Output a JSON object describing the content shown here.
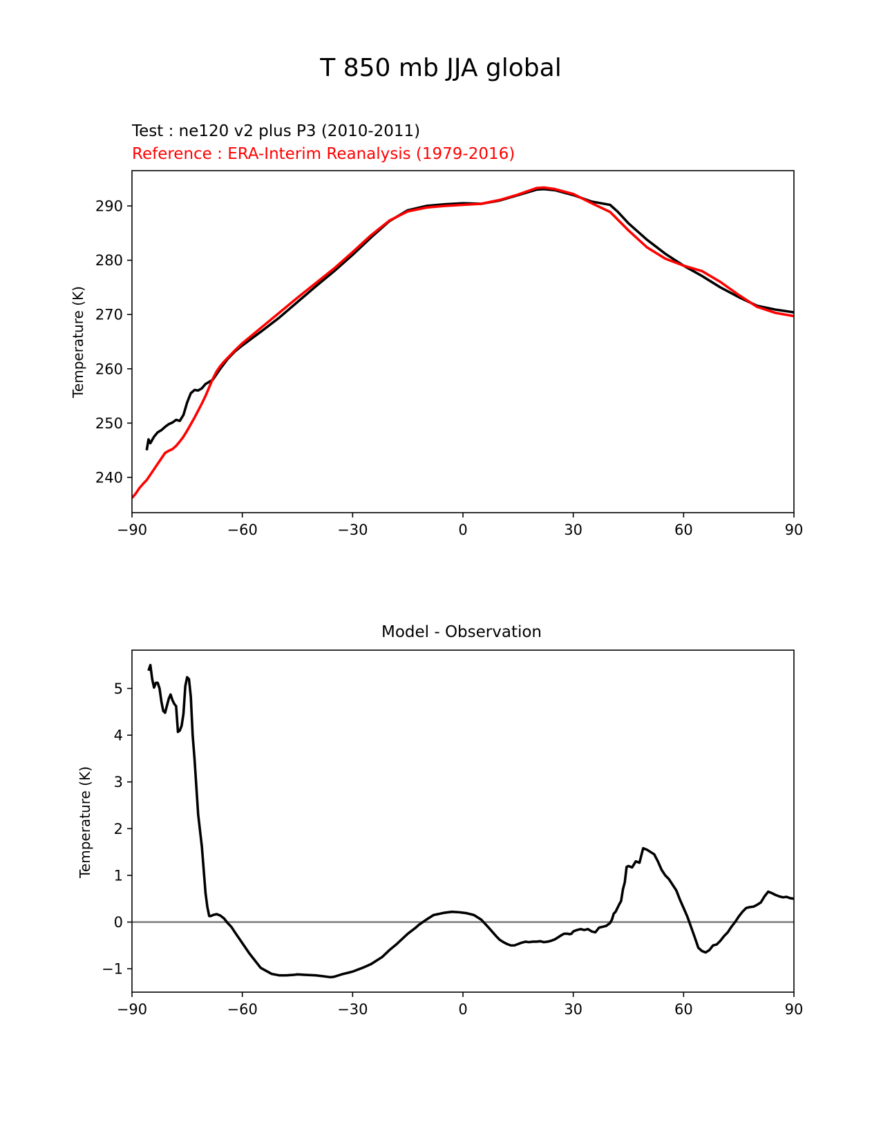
{
  "figure": {
    "title": "T 850 mb JJA global"
  },
  "colors": {
    "test": "#000000",
    "reference": "#ff0000",
    "zero_line": "#808080"
  },
  "chart_data": [
    {
      "type": "line",
      "test_label": "Test : ne120 v2 plus P3 (2010-2011)",
      "reference_label": "Reference : ERA-Interim Reanalysis (1979-2016)",
      "xlabel": "",
      "ylabel": "Temperature (K)",
      "xlim": [
        -90,
        90
      ],
      "ylim": [
        233.5,
        296.5
      ],
      "xticks": [
        -90,
        -60,
        -30,
        0,
        30,
        60,
        90
      ],
      "xtick_labels": [
        "−90",
        "−60",
        "−30",
        "0",
        "30",
        "60",
        "90"
      ],
      "yticks": [
        240,
        250,
        260,
        270,
        280,
        290
      ],
      "ytick_labels": [
        "240",
        "250",
        "260",
        "270",
        "280",
        "290"
      ],
      "series": [
        {
          "name": "Test : ne120 v2 plus P3 (2010-2011)",
          "color": "#000000",
          "x": [
            -86,
            -85.5,
            -85,
            -84,
            -83,
            -82,
            -81,
            -80,
            -79,
            -78,
            -77,
            -76,
            -75,
            -74,
            -73,
            -72,
            -71,
            -70,
            -69,
            -68,
            -66,
            -64,
            -62,
            -60,
            -55,
            -50,
            -45,
            -40,
            -35,
            -30,
            -25,
            -20,
            -15,
            -10,
            -5,
            0,
            5,
            10,
            15,
            20,
            22,
            25,
            30,
            35,
            40,
            42,
            45,
            50,
            55,
            60,
            65,
            70,
            75,
            80,
            85,
            90
          ],
          "y": [
            245,
            247,
            246.3,
            247.5,
            248.3,
            248.7,
            249.3,
            249.8,
            250.1,
            250.6,
            250.4,
            251.5,
            253.8,
            255.5,
            256.1,
            256.0,
            256.4,
            257.2,
            257.6,
            258.0,
            260.0,
            261.8,
            263.2,
            264.3,
            266.8,
            269.4,
            272.3,
            275.2,
            278.0,
            281.0,
            284.2,
            287.2,
            289.2,
            290.0,
            290.3,
            290.5,
            290.4,
            291.0,
            292.0,
            293.0,
            293.1,
            292.9,
            292.0,
            290.8,
            290.2,
            289.0,
            286.8,
            283.8,
            281.2,
            279.0,
            277.1,
            275.0,
            273.2,
            271.6,
            270.9,
            270.4
          ]
        },
        {
          "name": "Reference : ERA-Interim Reanalysis (1979-2016)",
          "color": "#ff0000",
          "x": [
            -90,
            -89,
            -88,
            -87,
            -86,
            -85,
            -84,
            -83,
            -82,
            -81,
            -80,
            -79,
            -78,
            -77,
            -76,
            -75,
            -74,
            -73,
            -72,
            -71,
            -70,
            -69,
            -68,
            -67,
            -66,
            -65,
            -64,
            -62,
            -60,
            -55,
            -50,
            -45,
            -40,
            -35,
            -30,
            -25,
            -20,
            -15,
            -10,
            -5,
            0,
            5,
            10,
            15,
            20,
            22,
            25,
            30,
            35,
            40,
            45,
            50,
            55,
            60,
            65,
            70,
            75,
            80,
            85,
            90
          ],
          "y": [
            236.2,
            237.0,
            238.0,
            238.8,
            239.5,
            240.5,
            241.5,
            242.5,
            243.5,
            244.5,
            244.9,
            245.2,
            245.8,
            246.6,
            247.5,
            248.6,
            249.8,
            251.0,
            252.3,
            253.6,
            255.0,
            256.6,
            258.2,
            259.5,
            260.5,
            261.3,
            262.0,
            263.4,
            264.7,
            267.5,
            270.3,
            273.1,
            275.8,
            278.5,
            281.5,
            284.6,
            287.3,
            289.0,
            289.7,
            290.0,
            290.2,
            290.4,
            291.1,
            292.1,
            293.3,
            293.4,
            293.1,
            292.2,
            290.5,
            288.9,
            285.5,
            282.4,
            280.3,
            279.0,
            278.0,
            276.0,
            273.6,
            271.4,
            270.3,
            269.7
          ]
        }
      ]
    },
    {
      "type": "line",
      "title": "Model - Observation",
      "xlabel": "",
      "ylabel": "Temperature (K)",
      "xlim": [
        -90,
        90
      ],
      "ylim": [
        -1.5,
        5.82
      ],
      "xticks": [
        -90,
        -60,
        -30,
        0,
        30,
        60,
        90
      ],
      "xtick_labels": [
        "−90",
        "−60",
        "−30",
        "0",
        "30",
        "60",
        "90"
      ],
      "yticks": [
        -1,
        0,
        1,
        2,
        3,
        4,
        5
      ],
      "ytick_labels": [
        "−1",
        "0",
        "1",
        "2",
        "3",
        "4",
        "5"
      ],
      "zero_line": 0,
      "series": [
        {
          "name": "Model - Observation",
          "color": "#000000",
          "x": [
            -85.5,
            -85,
            -84.5,
            -84,
            -83.5,
            -83,
            -82.5,
            -82,
            -81.5,
            -81,
            -80,
            -79.5,
            -79,
            -78.5,
            -78,
            -77.5,
            -77,
            -76.5,
            -76,
            -75.5,
            -75,
            -74.5,
            -74,
            -73.5,
            -73,
            -72,
            -71,
            -70,
            -69.5,
            -69,
            -68.5,
            -68,
            -67,
            -66,
            -65,
            -64,
            -63,
            -62,
            -60,
            -58,
            -55,
            -52,
            -50,
            -48,
            -46,
            -45,
            -43,
            -40,
            -38,
            -36,
            -35,
            -33,
            -31,
            -30,
            -28,
            -27,
            -25,
            -22,
            -20,
            -18,
            -15,
            -13,
            -12,
            -10,
            -8,
            -5,
            -3,
            -1,
            1,
            3,
            5,
            7,
            9,
            10,
            11,
            12,
            13,
            14,
            15,
            16,
            17,
            18,
            19,
            20,
            21,
            22,
            23,
            24,
            25,
            26,
            27,
            27.5,
            28,
            28.5,
            29,
            29.5,
            30,
            31,
            32,
            33,
            34,
            35,
            36,
            37,
            38,
            39,
            40,
            40.5,
            41,
            41.5,
            42,
            42.5,
            43,
            43.5,
            44,
            44.5,
            45,
            46,
            47,
            48,
            49,
            50,
            51,
            52,
            53,
            54,
            55,
            56,
            57,
            58,
            59,
            60,
            61,
            62,
            63,
            64,
            65,
            66,
            67,
            68,
            69,
            70,
            71,
            72,
            73,
            74,
            75,
            76,
            77,
            78,
            79,
            80,
            81,
            82,
            83,
            84,
            85,
            86,
            87,
            88,
            89,
            90
          ],
          "y": [
            5.38,
            5.5,
            5.2,
            5.02,
            5.12,
            5.12,
            5.0,
            4.72,
            4.52,
            4.48,
            4.78,
            4.87,
            4.75,
            4.67,
            4.62,
            4.07,
            4.1,
            4.2,
            4.46,
            5.05,
            5.24,
            5.2,
            4.82,
            4.0,
            3.5,
            2.3,
            1.62,
            0.62,
            0.32,
            0.13,
            0.13,
            0.15,
            0.17,
            0.14,
            0.08,
            -0.02,
            -0.1,
            -0.22,
            -0.45,
            -0.68,
            -0.98,
            -1.11,
            -1.14,
            -1.14,
            -1.13,
            -1.12,
            -1.13,
            -1.14,
            -1.16,
            -1.18,
            -1.17,
            -1.12,
            -1.08,
            -1.06,
            -1.0,
            -0.97,
            -0.9,
            -0.75,
            -0.6,
            -0.47,
            -0.25,
            -0.13,
            -0.06,
            0.05,
            0.15,
            0.2,
            0.22,
            0.21,
            0.19,
            0.15,
            0.05,
            -0.12,
            -0.3,
            -0.38,
            -0.43,
            -0.47,
            -0.5,
            -0.5,
            -0.47,
            -0.44,
            -0.42,
            -0.43,
            -0.42,
            -0.42,
            -0.41,
            -0.43,
            -0.42,
            -0.4,
            -0.37,
            -0.32,
            -0.27,
            -0.25,
            -0.25,
            -0.25,
            -0.26,
            -0.25,
            -0.2,
            -0.17,
            -0.15,
            -0.17,
            -0.15,
            -0.2,
            -0.22,
            -0.12,
            -0.1,
            -0.08,
            -0.02,
            0.05,
            0.18,
            0.22,
            0.3,
            0.38,
            0.45,
            0.7,
            0.85,
            1.18,
            1.2,
            1.17,
            1.3,
            1.27,
            1.58,
            1.55,
            1.5,
            1.45,
            1.3,
            1.12,
            1.0,
            0.92,
            0.8,
            0.68,
            0.48,
            0.3,
            0.12,
            -0.1,
            -0.32,
            -0.55,
            -0.62,
            -0.65,
            -0.6,
            -0.5,
            -0.48,
            -0.4,
            -0.3,
            -0.22,
            -0.1,
            0.0,
            0.12,
            0.22,
            0.3,
            0.32,
            0.33,
            0.37,
            0.42,
            0.55,
            0.65,
            0.62,
            0.58,
            0.55,
            0.53,
            0.54,
            0.51,
            0.5
          ]
        }
      ]
    }
  ]
}
